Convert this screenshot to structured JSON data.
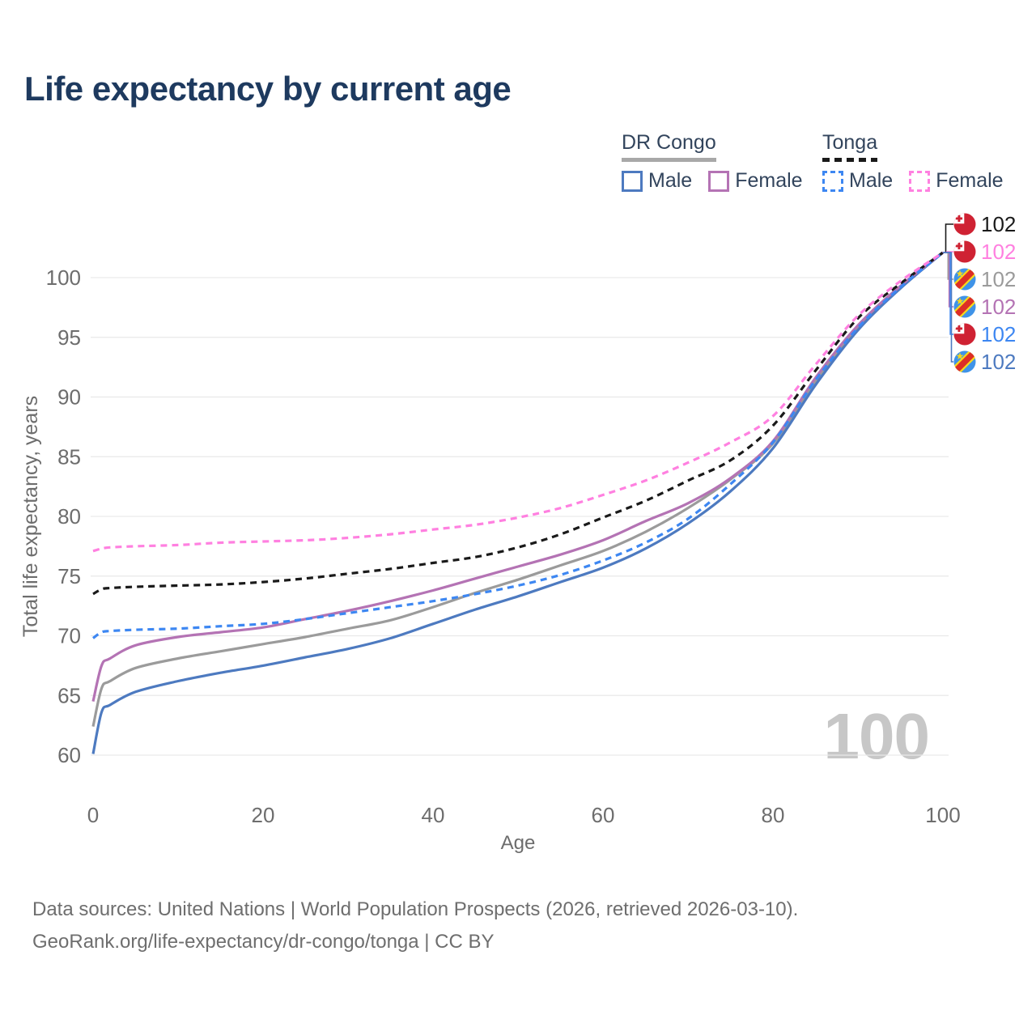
{
  "title": "Life expectancy by current age",
  "legend": {
    "groups": [
      {
        "name": "DR Congo",
        "line_style": "solid",
        "underline_color": "#a8a8a8",
        "items": [
          {
            "label": "Male",
            "color": "#4d7ac0",
            "swatch_style": "solid"
          },
          {
            "label": "Female",
            "color": "#b473b4",
            "swatch_style": "solid"
          }
        ]
      },
      {
        "name": "Tonga",
        "line_style": "dashed",
        "underline_color": "#1a1a1a",
        "items": [
          {
            "label": "Male",
            "color": "#3d87f2",
            "swatch_style": "dashed"
          },
          {
            "label": "Female",
            "color": "#ff80e0",
            "swatch_style": "dashed"
          }
        ]
      }
    ]
  },
  "chart_data": {
    "type": "line",
    "title": "Life expectancy by current age",
    "xlabel": "Age",
    "ylabel": "Total life expectancy, years",
    "xlim": [
      0,
      100
    ],
    "ylim": [
      60,
      100
    ],
    "x_ticks": [
      0,
      20,
      40,
      60,
      80,
      100
    ],
    "y_ticks": [
      60,
      65,
      70,
      75,
      80,
      85,
      90,
      95,
      100
    ],
    "grid": "horizontal",
    "legend_position": "top-right",
    "watermark": "100",
    "x": [
      0,
      1,
      2,
      5,
      10,
      15,
      20,
      25,
      30,
      35,
      40,
      45,
      50,
      55,
      60,
      65,
      70,
      75,
      80,
      85,
      90,
      95,
      100
    ],
    "series": [
      {
        "name": "DR Congo — Both sexes",
        "country": "DR Congo",
        "sex": "Both",
        "color": "#9b9b9b",
        "dash": false,
        "values": [
          62.4,
          65.6,
          66.2,
          67.3,
          68.1,
          68.7,
          69.3,
          69.9,
          70.6,
          71.3,
          72.4,
          73.6,
          74.7,
          75.9,
          77.1,
          78.7,
          80.7,
          83.1,
          86.1,
          91.3,
          95.8,
          99.2,
          102.1
        ]
      },
      {
        "name": "DR Congo — Male",
        "country": "DR Congo",
        "sex": "Male",
        "color": "#4d7ac0",
        "dash": false,
        "values": [
          60.1,
          63.6,
          64.2,
          65.3,
          66.2,
          66.9,
          67.5,
          68.2,
          68.9,
          69.8,
          71.0,
          72.2,
          73.3,
          74.5,
          75.7,
          77.3,
          79.4,
          82.1,
          85.7,
          91.0,
          95.6,
          99.1,
          102.1
        ]
      },
      {
        "name": "DR Congo — Female",
        "country": "DR Congo",
        "sex": "Female",
        "color": "#b473b4",
        "dash": false,
        "values": [
          64.5,
          67.5,
          68.1,
          69.2,
          69.9,
          70.3,
          70.7,
          71.4,
          72.1,
          72.9,
          73.8,
          74.8,
          75.8,
          76.8,
          78.0,
          79.6,
          81.1,
          83.2,
          86.3,
          91.6,
          96.0,
          99.3,
          102.1
        ]
      },
      {
        "name": "Tonga — Both sexes",
        "country": "Tonga",
        "sex": "Both",
        "color": "#1a1a1a",
        "dash": true,
        "values": [
          73.5,
          73.9,
          74.0,
          74.1,
          74.2,
          74.3,
          74.5,
          74.8,
          75.2,
          75.6,
          76.1,
          76.6,
          77.4,
          78.5,
          79.9,
          81.3,
          83.0,
          84.7,
          87.6,
          92.2,
          96.6,
          99.5,
          102.1
        ]
      },
      {
        "name": "Tonga — Male",
        "country": "Tonga",
        "sex": "Male",
        "color": "#3d87f2",
        "dash": true,
        "values": [
          69.8,
          70.3,
          70.4,
          70.5,
          70.6,
          70.8,
          71.0,
          71.4,
          71.9,
          72.4,
          72.9,
          73.5,
          74.2,
          75.1,
          76.3,
          77.8,
          79.8,
          82.7,
          86.2,
          91.4,
          95.8,
          99.2,
          102.1
        ]
      },
      {
        "name": "Tonga — Female",
        "country": "Tonga",
        "sex": "Female",
        "color": "#ff80e0",
        "dash": true,
        "values": [
          77.1,
          77.3,
          77.4,
          77.5,
          77.6,
          77.8,
          77.9,
          78.0,
          78.2,
          78.5,
          78.9,
          79.3,
          79.9,
          80.7,
          81.8,
          83.0,
          84.5,
          86.2,
          88.4,
          92.7,
          96.8,
          99.7,
          102.1
        ]
      }
    ],
    "end_labels": [
      {
        "flag": "tonga",
        "text": "102",
        "color": "#1a1a1a"
      },
      {
        "flag": "tonga",
        "text": "102",
        "color": "#ff80e0"
      },
      {
        "flag": "dr-congo",
        "text": "102",
        "color": "#9b9b9b"
      },
      {
        "flag": "dr-congo",
        "text": "102",
        "color": "#b473b4"
      },
      {
        "flag": "tonga",
        "text": "102",
        "color": "#3d87f2"
      },
      {
        "flag": "dr-congo",
        "text": "102",
        "color": "#4d7ac0"
      }
    ]
  },
  "footer": {
    "line1": "Data sources: United Nations | World Population Prospects (2026, retrieved 2026-03-10).",
    "line2": "GeoRank.org/life-expectancy/dr-congo/tonga | CC BY"
  },
  "colors": {
    "title": "#1e3a5f",
    "legend_text": "#32445c",
    "axis_text": "#6d6d6d",
    "gridline": "#e9e9e9",
    "watermark": "#c7c7c7",
    "footer_text": "#6e6e6e",
    "flag_tonga_red": "#cf2233",
    "flag_congo_blue": "#3f93e8",
    "flag_congo_yellow": "#f7d71c",
    "flag_congo_red": "#dd2e26"
  }
}
